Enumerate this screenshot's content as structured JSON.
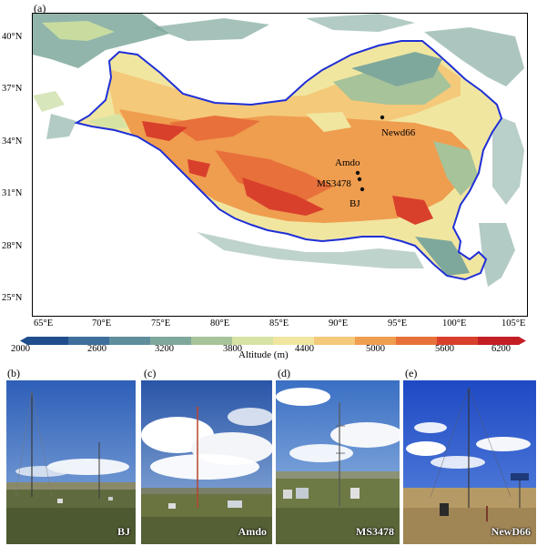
{
  "panel_labels": {
    "a": "(a)",
    "b": "(b)",
    "c": "(c)",
    "d": "(d)",
    "e": "(e)"
  },
  "map": {
    "lat_ticks": [
      "40°N",
      "37°N",
      "34°N",
      "31°N",
      "28°N",
      "25°N"
    ],
    "lon_ticks": [
      "65°E",
      "70°E",
      "75°E",
      "80°E",
      "85°E",
      "90°E",
      "95°E",
      "100°E",
      "105°E"
    ],
    "stations": [
      {
        "name": "Newd66"
      },
      {
        "name": "Amdo"
      },
      {
        "name": "MS3478"
      },
      {
        "name": "BJ"
      }
    ],
    "boundary_color": "#1f2fd6"
  },
  "colorbar": {
    "ticks": [
      "2000",
      "2600",
      "3200",
      "3800",
      "4400",
      "5000",
      "5600",
      "6200"
    ],
    "label": "Altitude (m)",
    "colors": [
      "#1f4e8c",
      "#3d6f9c",
      "#5e8e9c",
      "#7fa89c",
      "#a6c39a",
      "#d7e3a3",
      "#f1e6a0",
      "#f4c97a",
      "#ef9d4f",
      "#e8703a",
      "#d9402c",
      "#c41e25"
    ]
  },
  "photos": [
    {
      "caption": "BJ"
    },
    {
      "caption": "Amdo"
    },
    {
      "caption": "MS3478"
    },
    {
      "caption": "NewD66"
    }
  ]
}
